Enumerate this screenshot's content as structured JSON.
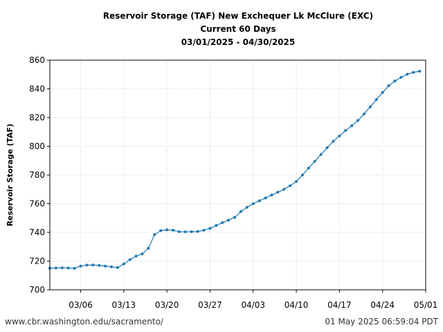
{
  "chart_data": {
    "type": "line",
    "title_lines": [
      "Reservoir Storage (TAF) New Exchequer Lk McClure (EXC)",
      "Current 60 Days",
      "03/01/2025 - 04/30/2025"
    ],
    "xlabel": "",
    "ylabel": "Reservoir Storage (TAF)",
    "ylim": [
      700,
      860
    ],
    "yticks": [
      700,
      720,
      740,
      760,
      780,
      800,
      820,
      840,
      860
    ],
    "xlim": [
      "2025-03-01",
      "2025-05-01"
    ],
    "xticks": [
      {
        "date": "2025-03-06",
        "label": "03/06"
      },
      {
        "date": "2025-03-13",
        "label": "03/13"
      },
      {
        "date": "2025-03-20",
        "label": "03/20"
      },
      {
        "date": "2025-03-27",
        "label": "03/27"
      },
      {
        "date": "2025-04-03",
        "label": "04/03"
      },
      {
        "date": "2025-04-10",
        "label": "04/10"
      },
      {
        "date": "2025-04-17",
        "label": "04/17"
      },
      {
        "date": "2025-04-24",
        "label": "04/24"
      },
      {
        "date": "2025-05-01",
        "label": "05/01"
      }
    ],
    "grid": true,
    "series": [
      {
        "color": "#1f77b4",
        "x": [
          "2025-03-01",
          "2025-03-02",
          "2025-03-03",
          "2025-03-04",
          "2025-03-05",
          "2025-03-06",
          "2025-03-07",
          "2025-03-08",
          "2025-03-09",
          "2025-03-10",
          "2025-03-11",
          "2025-03-12",
          "2025-03-13",
          "2025-03-14",
          "2025-03-15",
          "2025-03-16",
          "2025-03-17",
          "2025-03-18",
          "2025-03-19",
          "2025-03-20",
          "2025-03-21",
          "2025-03-22",
          "2025-03-23",
          "2025-03-24",
          "2025-03-25",
          "2025-03-26",
          "2025-03-27",
          "2025-03-28",
          "2025-03-29",
          "2025-03-30",
          "2025-03-31",
          "2025-04-01",
          "2025-04-02",
          "2025-04-03",
          "2025-04-04",
          "2025-04-05",
          "2025-04-06",
          "2025-04-07",
          "2025-04-08",
          "2025-04-09",
          "2025-04-10",
          "2025-04-11",
          "2025-04-12",
          "2025-04-13",
          "2025-04-14",
          "2025-04-15",
          "2025-04-16",
          "2025-04-17",
          "2025-04-18",
          "2025-04-19",
          "2025-04-20",
          "2025-04-21",
          "2025-04-22",
          "2025-04-23",
          "2025-04-24",
          "2025-04-25",
          "2025-04-26",
          "2025-04-27",
          "2025-04-28",
          "2025-04-29",
          "2025-04-30"
        ],
        "y": [
          715,
          715.2,
          715.3,
          715.2,
          715,
          716.5,
          717.2,
          717.3,
          717,
          716.5,
          716,
          715.5,
          718,
          721,
          723.5,
          725,
          729,
          738.5,
          741.2,
          741.8,
          741.5,
          740.5,
          740.4,
          740.5,
          740.6,
          741.5,
          742.8,
          744.8,
          746.8,
          748.5,
          750.5,
          754.5,
          757.5,
          760,
          762,
          764,
          766,
          768,
          770,
          772.5,
          775.5,
          780,
          784.8,
          789.5,
          794.2,
          799,
          803.5,
          807.2,
          811,
          814.3,
          818,
          822.5,
          827.5,
          832.5,
          837.5,
          842.2,
          845.5,
          848,
          850.2,
          851.5,
          852.3
        ]
      }
    ]
  },
  "footer": {
    "source": "www.cbr.washington.edu/sacramento/",
    "generated": "01 May 2025 06:59:04 PDT"
  }
}
